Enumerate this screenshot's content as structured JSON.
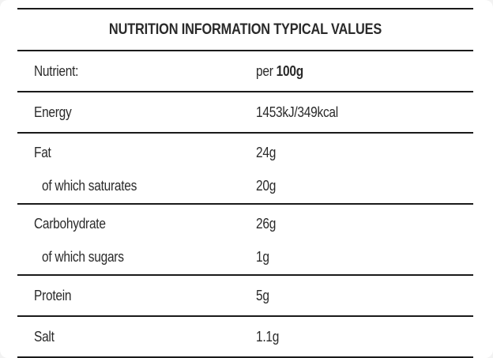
{
  "table": {
    "title": "NUTRITION INFORMATION TYPICAL VALUES",
    "header": {
      "nutrient_label": "Nutrient:",
      "per_prefix": "per ",
      "per_amount": "100g"
    },
    "rows": [
      {
        "nutrient": "Energy",
        "value": "1453kJ/349kcal"
      },
      {
        "nutrient": "Fat",
        "value": "24g"
      },
      {
        "nutrient": "of which saturates",
        "value": "20g"
      },
      {
        "nutrient": "Carbohydrate",
        "value": "26g"
      },
      {
        "nutrient": "of which sugars",
        "value": "1g"
      },
      {
        "nutrient": "Protein",
        "value": "5g"
      },
      {
        "nutrient": "Salt",
        "value": "1.1g"
      }
    ]
  }
}
